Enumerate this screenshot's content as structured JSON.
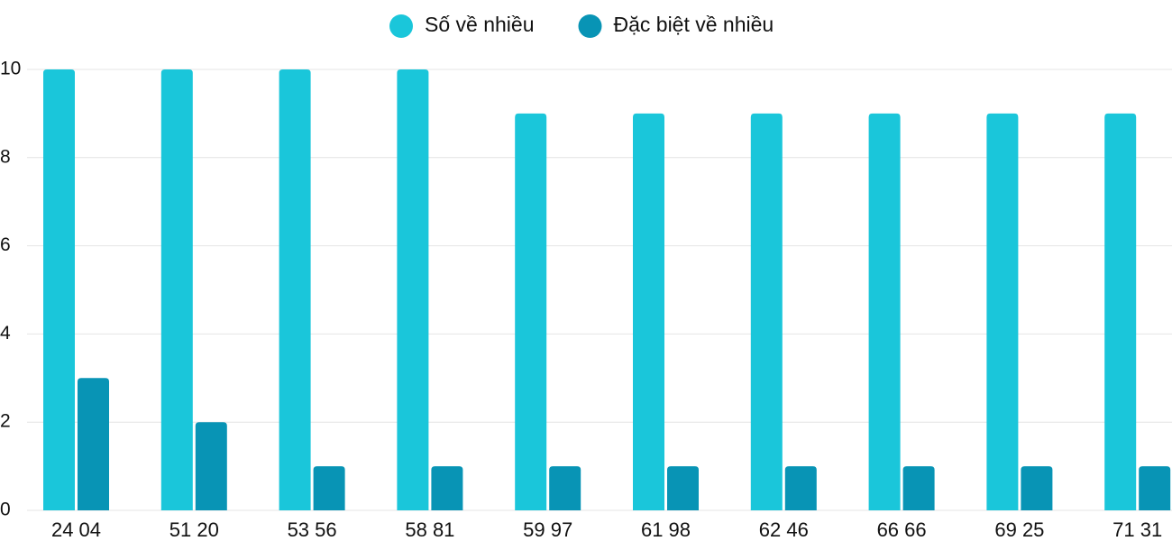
{
  "chart_data": {
    "type": "bar",
    "categories": [
      "24 04",
      "51 20",
      "53 56",
      "58 81",
      "59 97",
      "61 98",
      "62 46",
      "66 66",
      "69 25",
      "71 31"
    ],
    "series": [
      {
        "name": "Số về nhiều",
        "color": "#1ac6da",
        "values": [
          10,
          10,
          10,
          10,
          9,
          9,
          9,
          9,
          9,
          9
        ]
      },
      {
        "name": "Đặc biệt về nhiều",
        "color": "#0894b5",
        "values": [
          3,
          2,
          1,
          1,
          1,
          1,
          1,
          1,
          1,
          1
        ]
      }
    ],
    "ylim": [
      0,
      10
    ],
    "yticks": [
      0,
      2,
      4,
      6,
      8,
      10
    ],
    "grid": true,
    "legend": "top"
  }
}
